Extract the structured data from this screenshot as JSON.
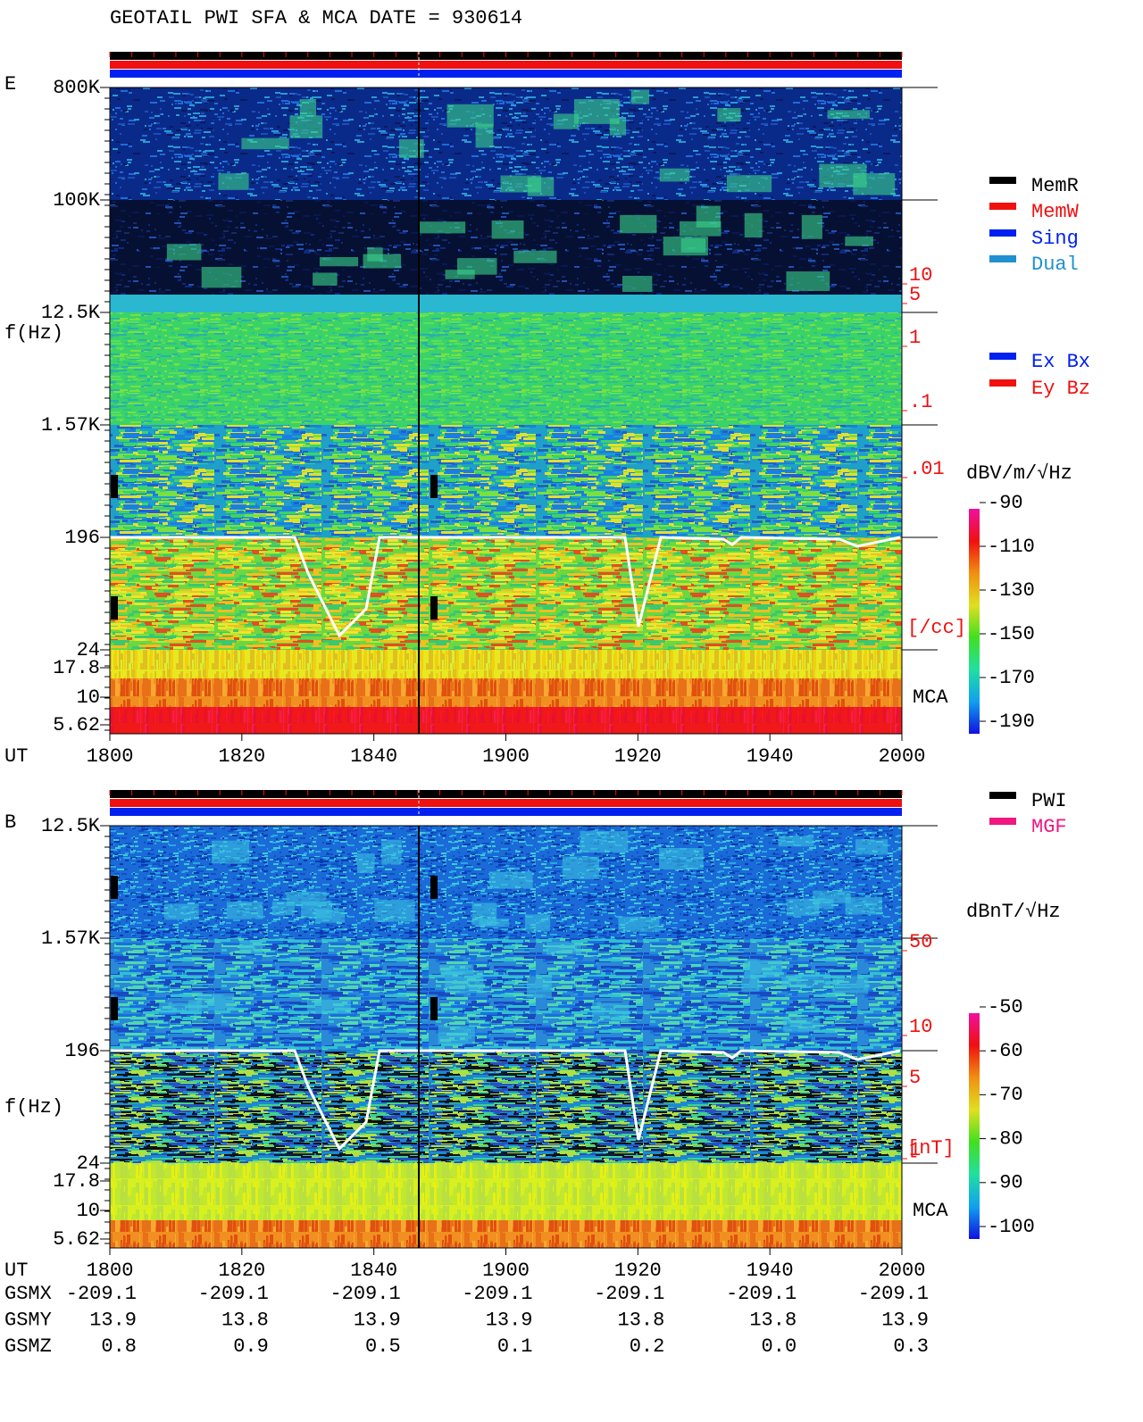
{
  "header": {
    "title": "GEOTAIL  PWI SFA & MCA   DATE = 930614"
  },
  "panels": [
    {
      "label": "E",
      "y_axis_label": "f(Hz)",
      "freq_ticks": [
        "800K",
        "100K",
        "12.5K",
        "1.57K",
        "196",
        "24",
        "17.8",
        "10",
        "5.62"
      ],
      "time_label": "UT",
      "time_ticks": [
        "1800",
        "1820",
        "1840",
        "1900",
        "1920",
        "1940",
        "2000"
      ],
      "right_ticks": [
        "10",
        "5",
        "1",
        ".1",
        ".01"
      ],
      "right_unit": "[/cc]",
      "mca_label": "MCA",
      "colorbar": {
        "unit": "dBV/m/√Hz",
        "ticks": [
          "-90",
          "-110",
          "-130",
          "-150",
          "-170",
          "-190"
        ]
      }
    },
    {
      "label": "B",
      "y_axis_label": "f(Hz)",
      "freq_ticks": [
        "12.5K",
        "1.57K",
        "196",
        "24",
        "17.8",
        "10",
        "5.62"
      ],
      "time_label": "UT",
      "time_ticks": [
        "1800",
        "1820",
        "1840",
        "1900",
        "1920",
        "1940",
        "2000"
      ],
      "right_ticks": [
        "50",
        "10",
        "5",
        "1"
      ],
      "right_unit": "[nT]",
      "mca_label": "MCA",
      "colorbar": {
        "unit": "dBnT/√Hz",
        "ticks": [
          "-50",
          "-60",
          "-70",
          "-80",
          "-90",
          "-100"
        ]
      }
    }
  ],
  "legends": {
    "memory": [
      "MemR",
      "MemW",
      "Sing",
      "Dual"
    ],
    "components": [
      "Ex Bx",
      "Ey Bz"
    ],
    "sources": [
      "PWI",
      "MGF"
    ]
  },
  "ephemeris": {
    "rows": [
      {
        "label": "GSMX",
        "values": [
          "-209.1",
          "-209.1",
          "-209.1",
          "-209.1",
          "-209.1",
          "-209.1",
          "-209.1"
        ]
      },
      {
        "label": "GSMY",
        "values": [
          "13.9",
          "13.8",
          "13.9",
          "13.9",
          "13.8",
          "13.8",
          "13.9"
        ]
      },
      {
        "label": "GSMZ",
        "values": [
          "0.8",
          "0.9",
          "0.5",
          "0.1",
          "0.2",
          "0.0",
          "0.3"
        ]
      }
    ]
  }
}
